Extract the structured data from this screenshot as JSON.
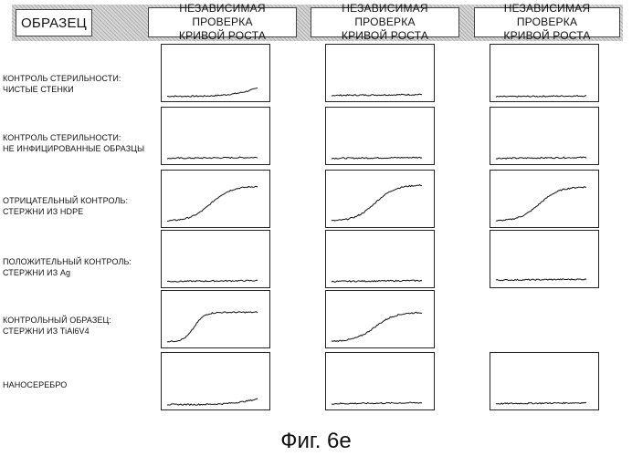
{
  "header": {
    "sample_label": "ОБРАЗЕЦ",
    "columns": [
      [
        "НЕЗАВИСИМАЯ ПРОВЕРКА",
        "КРИВОЙ РОСТА"
      ],
      [
        "НЕЗАВИСИМАЯ ПРОВЕРКА",
        "КРИВОЙ РОСТА"
      ],
      [
        "НЕЗАВИСИМАЯ ПРОВЕРКА",
        "КРИВОЙ РОСТА"
      ]
    ]
  },
  "rows": [
    {
      "label": [
        "КОНТРОЛЬ СТЕРИЛЬНОСТИ:",
        "ЧИСТЫЕ СТЕНКИ"
      ]
    },
    {
      "label": [
        "КОНТРОЛЬ СТЕРИЛЬНОСТИ:",
        "НЕ ИНФИЦИРОВАННЫЕ ОБРАЗЦЫ"
      ]
    },
    {
      "label": [
        "ОТРИЦАТЕЛЬНЫЙ КОНТРОЛЬ:",
        "СТЕРЖНИ ИЗ HDPE"
      ]
    },
    {
      "label": [
        "ПОЛОЖИТЕЛЬНЫЙ КОНТРОЛЬ:",
        "СТЕРЖНИ ИЗ Ag"
      ]
    },
    {
      "label": [
        "КОНТРОЛЬНЫЙ ОБРАЗЕЦ:",
        "СТЕРЖНИ ИЗ TiAl6V4"
      ]
    },
    {
      "label": [
        "НАНОСЕРЕБРО"
      ]
    }
  ],
  "chart_data": {
    "type": "line",
    "plots": [
      {
        "row": 0,
        "col": 0,
        "shape": "late-rise",
        "level": 0.22
      },
      {
        "row": 0,
        "col": 1,
        "shape": "flat",
        "level": 0.05
      },
      {
        "row": 0,
        "col": 2,
        "shape": "flat",
        "level": 0.02
      },
      {
        "row": 1,
        "col": 0,
        "shape": "flat",
        "level": 0.05
      },
      {
        "row": 1,
        "col": 1,
        "shape": "flat",
        "level": 0.05
      },
      {
        "row": 1,
        "col": 2,
        "shape": "flat",
        "level": 0.05
      },
      {
        "row": 2,
        "col": 0,
        "shape": "sigmoid",
        "level": 0.85
      },
      {
        "row": 2,
        "col": 1,
        "shape": "sigmoid",
        "level": 0.88
      },
      {
        "row": 2,
        "col": 2,
        "shape": "sigmoid",
        "level": 0.84
      },
      {
        "row": 3,
        "col": 0,
        "shape": "flat",
        "level": 0.05
      },
      {
        "row": 3,
        "col": 1,
        "shape": "flat",
        "level": 0.05
      },
      {
        "row": 3,
        "col": 2,
        "shape": "flat",
        "level": 0.08
      },
      {
        "row": 4,
        "col": 0,
        "shape": "sharp-sigmoid",
        "level": 0.72
      },
      {
        "row": 4,
        "col": 1,
        "shape": "sigmoid",
        "level": 0.72
      },
      {
        "row": 5,
        "col": 0,
        "shape": "late-rise",
        "level": 0.16
      },
      {
        "row": 5,
        "col": 1,
        "shape": "flat",
        "level": 0.05
      },
      {
        "row": 5,
        "col": 2,
        "shape": "flat",
        "level": 0.05
      }
    ]
  },
  "caption": "Фиг. 6е"
}
